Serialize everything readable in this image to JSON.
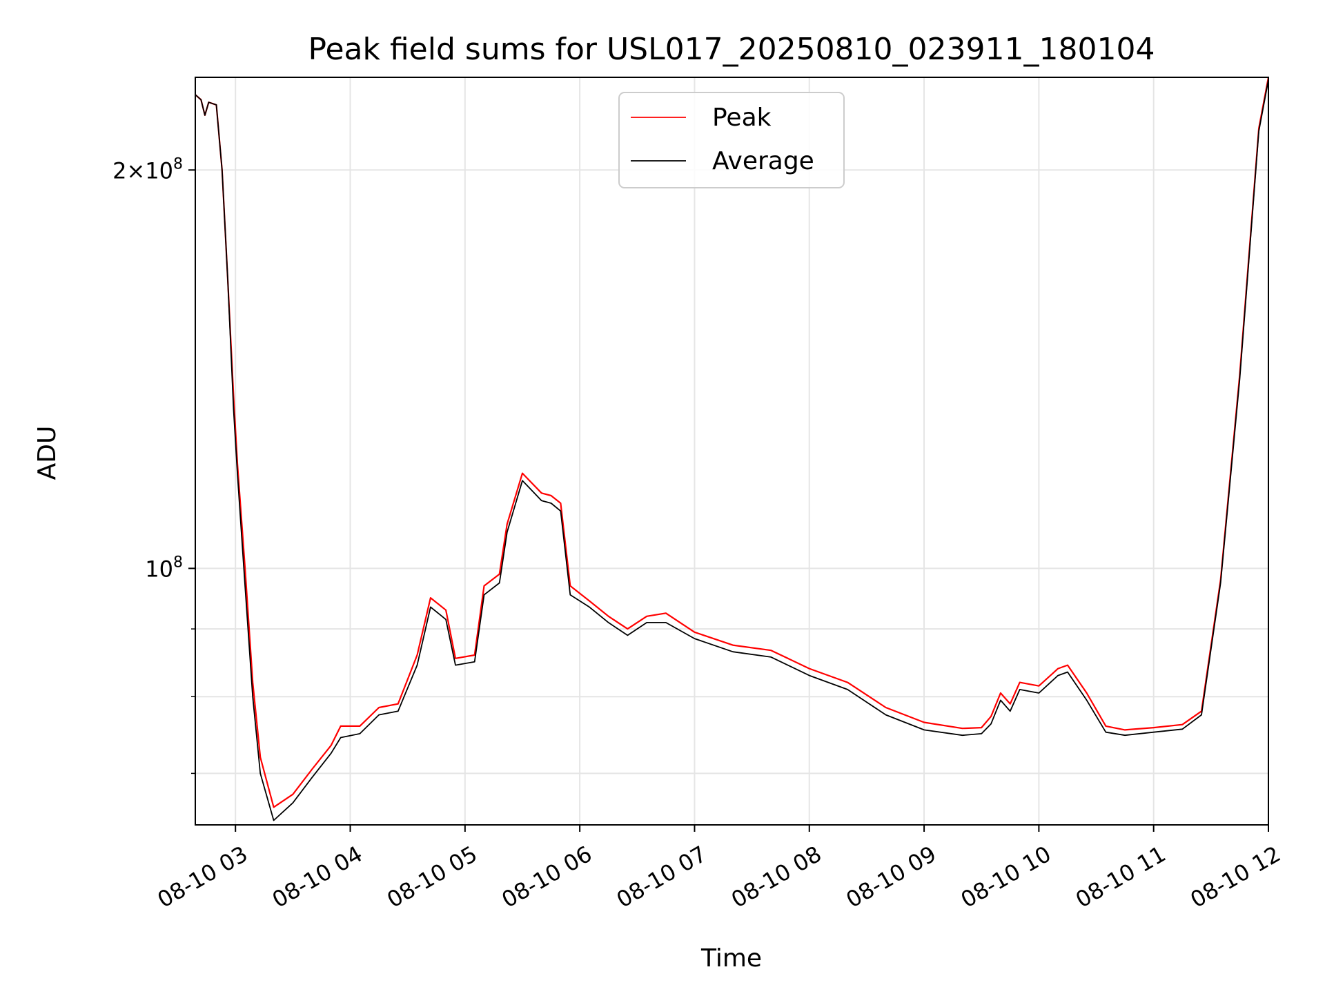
{
  "chart_data": {
    "type": "line",
    "title": "Peak field sums for USL017_20250810_023911_180104",
    "xlabel": "Time",
    "ylabel": "ADU",
    "y_scale": "log",
    "grid": true,
    "legend_position": "top-center",
    "xlim": [
      "2025-08-10 02:39",
      "2025-08-10 12:00"
    ],
    "ylim": [
      64000000,
      235000000
    ],
    "x_ticks": [
      {
        "value": "2025-08-10 03:00",
        "label": "08-10 03"
      },
      {
        "value": "2025-08-10 04:00",
        "label": "08-10 04"
      },
      {
        "value": "2025-08-10 05:00",
        "label": "08-10 05"
      },
      {
        "value": "2025-08-10 06:00",
        "label": "08-10 06"
      },
      {
        "value": "2025-08-10 07:00",
        "label": "08-10 07"
      },
      {
        "value": "2025-08-10 08:00",
        "label": "08-10 08"
      },
      {
        "value": "2025-08-10 09:00",
        "label": "08-10 09"
      },
      {
        "value": "2025-08-10 10:00",
        "label": "08-10 10"
      },
      {
        "value": "2025-08-10 11:00",
        "label": "08-10 11"
      },
      {
        "value": "2025-08-10 12:00",
        "label": "08-10 12"
      }
    ],
    "y_major_ticks": [
      {
        "value": 100000000,
        "base": "10",
        "exp": "8"
      },
      {
        "value": 200000000,
        "mant": "2",
        "base": "10",
        "exp": "8"
      }
    ],
    "y_minor_ticks": [
      70000000,
      80000000,
      90000000
    ],
    "series": [
      {
        "name": "Peak",
        "color": "#ff0000",
        "x": [
          "2025-08-10 02:39",
          "2025-08-10 02:42",
          "2025-08-10 02:44",
          "2025-08-10 02:46",
          "2025-08-10 02:50",
          "2025-08-10 02:53",
          "2025-08-10 02:56",
          "2025-08-10 02:59",
          "2025-08-10 03:01",
          "2025-08-10 03:05",
          "2025-08-10 03:09",
          "2025-08-10 03:13",
          "2025-08-10 03:20",
          "2025-08-10 03:30",
          "2025-08-10 03:40",
          "2025-08-10 03:50",
          "2025-08-10 03:55",
          "2025-08-10 04:05",
          "2025-08-10 04:15",
          "2025-08-10 04:25",
          "2025-08-10 04:35",
          "2025-08-10 04:42",
          "2025-08-10 04:50",
          "2025-08-10 04:55",
          "2025-08-10 05:05",
          "2025-08-10 05:10",
          "2025-08-10 05:18",
          "2025-08-10 05:22",
          "2025-08-10 05:30",
          "2025-08-10 05:40",
          "2025-08-10 05:45",
          "2025-08-10 05:50",
          "2025-08-10 05:55",
          "2025-08-10 06:05",
          "2025-08-10 06:15",
          "2025-08-10 06:25",
          "2025-08-10 06:35",
          "2025-08-10 06:45",
          "2025-08-10 07:00",
          "2025-08-10 07:20",
          "2025-08-10 07:40",
          "2025-08-10 08:00",
          "2025-08-10 08:20",
          "2025-08-10 08:40",
          "2025-08-10 09:00",
          "2025-08-10 09:20",
          "2025-08-10 09:30",
          "2025-08-10 09:35",
          "2025-08-10 09:40",
          "2025-08-10 09:45",
          "2025-08-10 09:50",
          "2025-08-10 10:00",
          "2025-08-10 10:10",
          "2025-08-10 10:15",
          "2025-08-10 10:25",
          "2025-08-10 10:35",
          "2025-08-10 10:45",
          "2025-08-10 11:00",
          "2025-08-10 11:15",
          "2025-08-10 11:25",
          "2025-08-10 11:35",
          "2025-08-10 11:45",
          "2025-08-10 11:55",
          "2025-08-10 12:00"
        ],
        "y": [
          228000000,
          226000000,
          220000000,
          225000000,
          224000000,
          200000000,
          165000000,
          135000000,
          120000000,
          100000000,
          82000000,
          72000000,
          66000000,
          67500000,
          70500000,
          73500000,
          76000000,
          76000000,
          78500000,
          79000000,
          86000000,
          95000000,
          93000000,
          85500000,
          86000000,
          97000000,
          99000000,
          108000000,
          118000000,
          114000000,
          113500000,
          112000000,
          97000000,
          94500000,
          92000000,
          90000000,
          92000000,
          92500000,
          89500000,
          87500000,
          86700000,
          84000000,
          82000000,
          78500000,
          76500000,
          75700000,
          75800000,
          77300000,
          80500000,
          79000000,
          82000000,
          81500000,
          84000000,
          84500000,
          80500000,
          76000000,
          75500000,
          75800000,
          76200000,
          78000000,
          98000000,
          140000000,
          215000000,
          235000000
        ]
      },
      {
        "name": "Average",
        "color": "#000000",
        "x": [
          "2025-08-10 02:39",
          "2025-08-10 02:42",
          "2025-08-10 02:44",
          "2025-08-10 02:46",
          "2025-08-10 02:50",
          "2025-08-10 02:53",
          "2025-08-10 02:56",
          "2025-08-10 02:59",
          "2025-08-10 03:01",
          "2025-08-10 03:05",
          "2025-08-10 03:09",
          "2025-08-10 03:13",
          "2025-08-10 03:20",
          "2025-08-10 03:30",
          "2025-08-10 03:40",
          "2025-08-10 03:50",
          "2025-08-10 03:55",
          "2025-08-10 04:05",
          "2025-08-10 04:15",
          "2025-08-10 04:25",
          "2025-08-10 04:35",
          "2025-08-10 04:42",
          "2025-08-10 04:50",
          "2025-08-10 04:55",
          "2025-08-10 05:05",
          "2025-08-10 05:10",
          "2025-08-10 05:18",
          "2025-08-10 05:22",
          "2025-08-10 05:30",
          "2025-08-10 05:40",
          "2025-08-10 05:45",
          "2025-08-10 05:50",
          "2025-08-10 05:55",
          "2025-08-10 06:05",
          "2025-08-10 06:15",
          "2025-08-10 06:25",
          "2025-08-10 06:35",
          "2025-08-10 06:45",
          "2025-08-10 07:00",
          "2025-08-10 07:20",
          "2025-08-10 07:40",
          "2025-08-10 08:00",
          "2025-08-10 08:20",
          "2025-08-10 08:40",
          "2025-08-10 09:00",
          "2025-08-10 09:20",
          "2025-08-10 09:30",
          "2025-08-10 09:35",
          "2025-08-10 09:40",
          "2025-08-10 09:45",
          "2025-08-10 09:50",
          "2025-08-10 10:00",
          "2025-08-10 10:10",
          "2025-08-10 10:15",
          "2025-08-10 10:25",
          "2025-08-10 10:35",
          "2025-08-10 10:45",
          "2025-08-10 11:00",
          "2025-08-10 11:15",
          "2025-08-10 11:25",
          "2025-08-10 11:35",
          "2025-08-10 11:45",
          "2025-08-10 11:55",
          "2025-08-10 12:00"
        ],
        "y": [
          228000000,
          226000000,
          220000000,
          225000000,
          224000000,
          200000000,
          165000000,
          132000000,
          118000000,
          97000000,
          80000000,
          70000000,
          64500000,
          66500000,
          69500000,
          72500000,
          74500000,
          75000000,
          77500000,
          78000000,
          84500000,
          93500000,
          91500000,
          84500000,
          85000000,
          95500000,
          97500000,
          106500000,
          116500000,
          112500000,
          112000000,
          110500000,
          95500000,
          93500000,
          91000000,
          89000000,
          91000000,
          91000000,
          88500000,
          86500000,
          85700000,
          83000000,
          81000000,
          77500000,
          75500000,
          74800000,
          75000000,
          76300000,
          79500000,
          78000000,
          81000000,
          80500000,
          83000000,
          83500000,
          79500000,
          75200000,
          74800000,
          75200000,
          75600000,
          77500000,
          97500000,
          139000000,
          214000000,
          234000000
        ]
      }
    ]
  }
}
